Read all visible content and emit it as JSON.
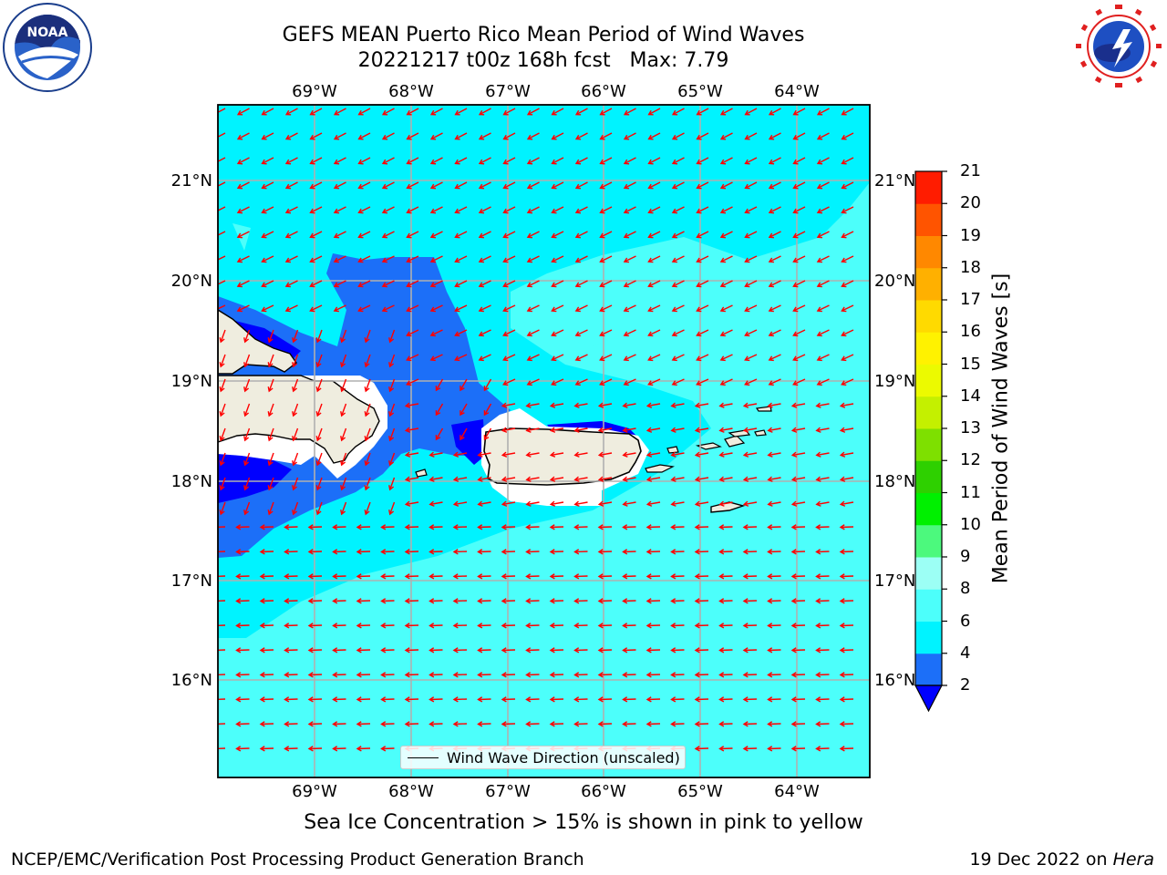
{
  "title": {
    "line1": "GEFS MEAN Puerto Rico Mean Period of Wind Waves",
    "line2": "20221217 t00z 168h fcst   Max: 7.79"
  },
  "logos": {
    "left": {
      "icon": "noaa-logo",
      "text": "NOAA"
    },
    "right": {
      "icon": "nws-logo"
    }
  },
  "map": {
    "lon_labels": [
      "69°W",
      "68°W",
      "67°W",
      "66°W",
      "65°W",
      "64°W"
    ],
    "lat_labels": [
      "21°N",
      "20°N",
      "19°N",
      "18°N",
      "17°N",
      "16°N"
    ],
    "land_color": "#efeddf",
    "ocean_colors": {
      "2-4": "#1c6ff8",
      "4-6": "#00f3ff",
      "6-8": "#4cfffb",
      "below-2": "#0000ff"
    },
    "arrow_color": "#ff0000",
    "legend": "Wind Wave Direction (unscaled)"
  },
  "colorbar": {
    "label": "Mean Period of Wind Waves [s]",
    "ticks": [
      "2",
      "4",
      "6",
      "8",
      "9",
      "10",
      "11",
      "12",
      "13",
      "14",
      "15",
      "16",
      "17",
      "18",
      "19",
      "20",
      "21"
    ],
    "colors": [
      "#1c6ff8",
      "#00f3ff",
      "#4cfffb",
      "#9cfff5",
      "#4cf97d",
      "#00f000",
      "#2ed000",
      "#7ee000",
      "#c4f000",
      "#ecfa00",
      "#fff200",
      "#ffda00",
      "#ffb000",
      "#ff8800",
      "#ff5400",
      "#ff1c00"
    ],
    "extend_color": "#0000ff"
  },
  "sea_ice_note": "Sea Ice Concentration > 15% is shown in pink to yellow",
  "footer": {
    "left": "NCEP/EMC/Verification Post Processing Product Generation Branch",
    "date": "19 Dec 2022 on ",
    "host": "Hera"
  }
}
